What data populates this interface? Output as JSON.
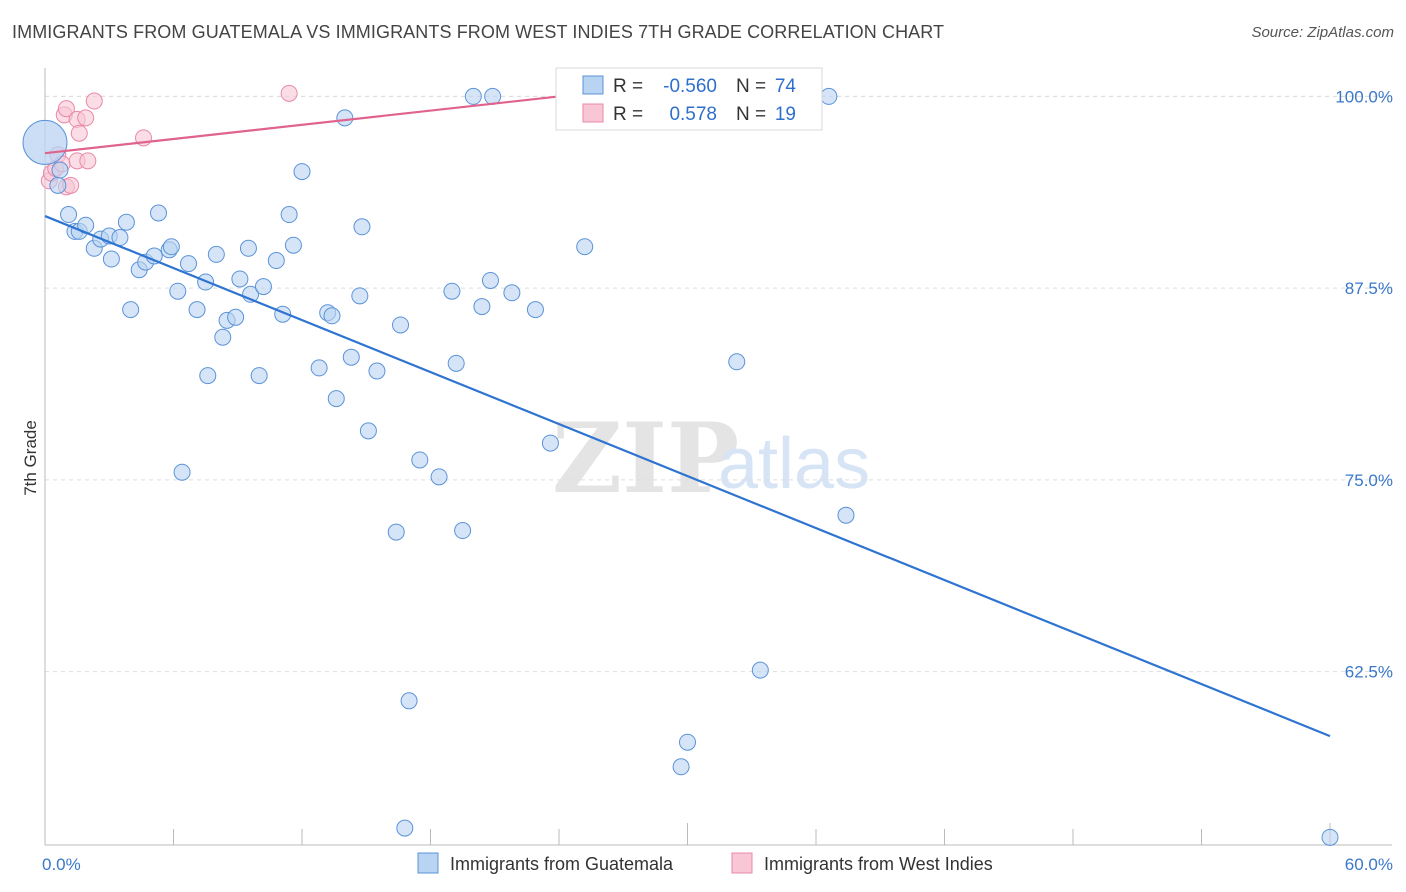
{
  "title": "IMMIGRANTS FROM GUATEMALA VS IMMIGRANTS FROM WEST INDIES 7TH GRADE CORRELATION CHART",
  "source": "Source: ZipAtlas.com",
  "watermark": {
    "zip": "ZIP",
    "atlas": "atlas"
  },
  "colors": {
    "blue_fill": "#b9d3f2",
    "blue_stroke": "#5b93d8",
    "blue_line": "#2f74d0",
    "pink_fill": "#f8c6d5",
    "pink_stroke": "#e889a8",
    "pink_line": "#e0628e",
    "tick_text": "#3a78c9",
    "grid": "#dddddd"
  },
  "legend_box": {
    "rows": [
      {
        "r_label": "R =",
        "r_value": "-0.560",
        "n_label": "N =",
        "n_value": "74",
        "color": "blue"
      },
      {
        "r_label": "R =",
        "r_value": "0.578",
        "n_label": "N =",
        "n_value": "19",
        "color": "pink"
      }
    ]
  },
  "chart_data": {
    "type": "scatter",
    "title": "IMMIGRANTS FROM GUATEMALA VS IMMIGRANTS FROM WEST INDIES 7TH GRADE CORRELATION CHART",
    "xlabel": "",
    "ylabel": "7th Grade",
    "xlim": [
      0,
      60
    ],
    "ylim": [
      51.2,
      101.2
    ],
    "x_tick_labels": [
      {
        "x": 0,
        "label": "0.0%"
      },
      {
        "x": 60,
        "label": "60.0%"
      }
    ],
    "y_tick_labels": [
      {
        "y": 100.0,
        "label": "100.0%"
      },
      {
        "y": 87.5,
        "label": "87.5%"
      },
      {
        "y": 75.0,
        "label": "75.0%"
      },
      {
        "y": 62.5,
        "label": "62.5%"
      }
    ],
    "grid": true,
    "legend_position": "bottom",
    "series": [
      {
        "name": "Immigrants from Guatemala",
        "color": "blue",
        "points": [
          [
            0.0,
            97.0
          ],
          [
            0.6,
            94.2
          ],
          [
            0.7,
            95.2
          ],
          [
            1.1,
            92.3
          ],
          [
            1.4,
            91.2
          ],
          [
            1.6,
            91.2
          ],
          [
            1.9,
            91.6
          ],
          [
            2.3,
            90.1
          ],
          [
            2.6,
            90.7
          ],
          [
            3.0,
            90.9
          ],
          [
            3.1,
            89.4
          ],
          [
            3.5,
            90.8
          ],
          [
            3.8,
            91.8
          ],
          [
            4.0,
            86.1
          ],
          [
            4.4,
            88.7
          ],
          [
            4.7,
            89.2
          ],
          [
            5.1,
            89.6
          ],
          [
            5.3,
            92.4
          ],
          [
            5.8,
            90.0
          ],
          [
            5.9,
            90.2
          ],
          [
            6.2,
            87.3
          ],
          [
            6.4,
            75.5
          ],
          [
            6.7,
            89.1
          ],
          [
            7.1,
            86.1
          ],
          [
            7.5,
            87.9
          ],
          [
            7.6,
            81.8
          ],
          [
            8.0,
            89.7
          ],
          [
            8.3,
            84.3
          ],
          [
            8.5,
            85.4
          ],
          [
            8.9,
            85.6
          ],
          [
            9.1,
            88.1
          ],
          [
            9.5,
            90.1
          ],
          [
            9.6,
            87.1
          ],
          [
            10.0,
            81.8
          ],
          [
            10.2,
            87.6
          ],
          [
            10.8,
            89.3
          ],
          [
            11.1,
            85.8
          ],
          [
            11.4,
            92.3
          ],
          [
            11.6,
            90.3
          ],
          [
            12.0,
            95.1
          ],
          [
            12.8,
            82.3
          ],
          [
            13.2,
            85.9
          ],
          [
            13.4,
            85.7
          ],
          [
            13.6,
            80.3
          ],
          [
            14.0,
            98.6
          ],
          [
            14.3,
            83.0
          ],
          [
            14.7,
            87.0
          ],
          [
            14.8,
            91.5
          ],
          [
            15.1,
            78.2
          ],
          [
            15.5,
            82.1
          ],
          [
            16.4,
            71.6
          ],
          [
            16.6,
            85.1
          ],
          [
            16.8,
            52.3
          ],
          [
            17.0,
            60.6
          ],
          [
            17.5,
            76.3
          ],
          [
            18.4,
            75.2
          ],
          [
            19.0,
            87.3
          ],
          [
            19.2,
            82.6
          ],
          [
            19.5,
            71.7
          ],
          [
            20.0,
            100.0
          ],
          [
            20.4,
            86.3
          ],
          [
            20.8,
            88.0
          ],
          [
            20.9,
            100.0
          ],
          [
            21.8,
            87.2
          ],
          [
            22.9,
            86.1
          ],
          [
            23.6,
            77.4
          ],
          [
            25.2,
            90.2
          ],
          [
            29.7,
            56.3
          ],
          [
            30.0,
            57.9
          ],
          [
            32.3,
            82.7
          ],
          [
            33.4,
            62.6
          ],
          [
            36.6,
            100.0
          ],
          [
            37.4,
            72.7
          ],
          [
            60.0,
            51.7
          ]
        ],
        "trend": {
          "x": [
            0,
            60
          ],
          "y": [
            92.2,
            58.3
          ]
        }
      },
      {
        "name": "Immigrants from West Indies",
        "color": "pink",
        "points": [
          [
            0.2,
            94.5
          ],
          [
            0.3,
            95.0
          ],
          [
            0.5,
            95.3
          ],
          [
            0.6,
            96.2
          ],
          [
            0.8,
            95.6
          ],
          [
            0.9,
            98.8
          ],
          [
            1.0,
            99.2
          ],
          [
            1.0,
            94.1
          ],
          [
            1.2,
            94.2
          ],
          [
            1.5,
            95.8
          ],
          [
            1.5,
            98.5
          ],
          [
            1.6,
            97.6
          ],
          [
            1.9,
            98.6
          ],
          [
            2.0,
            95.8
          ],
          [
            2.3,
            99.7
          ],
          [
            4.6,
            97.3
          ],
          [
            11.4,
            100.2
          ],
          [
            24.3,
            99.0
          ],
          [
            24.9,
            99.7
          ]
        ],
        "trend": {
          "x": [
            0,
            25.3
          ],
          "y": [
            96.3,
            100.2
          ]
        }
      }
    ]
  },
  "bottom_legend": [
    {
      "label": "Immigrants from Guatemala",
      "color": "blue"
    },
    {
      "label": "Immigrants from West Indies",
      "color": "pink"
    }
  ]
}
